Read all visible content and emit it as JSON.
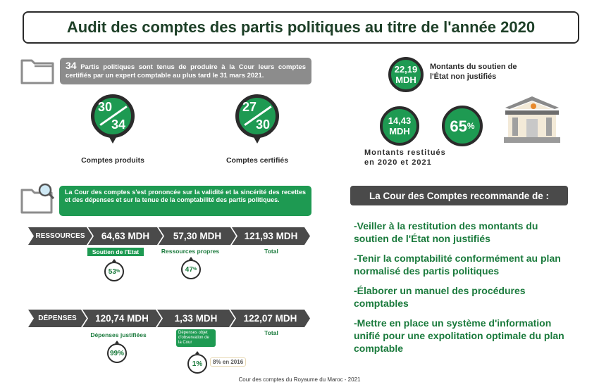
{
  "title": "Audit des comptes des partis politiques au titre de l'année 2020",
  "intro": {
    "number": "34",
    "text": " Partis politiques sont tenus de produire à la Cour leurs comptes certifiés par un expert comptable au plus tard le 31 mars 2021."
  },
  "pins": [
    {
      "num": "30",
      "den": "34",
      "label": "Comptes produits"
    },
    {
      "num": "27",
      "den": "30",
      "label": "Comptes certifiés"
    }
  ],
  "state_support": {
    "value": "22,19",
    "unit": "MDH",
    "label": "Montants du soutien de l'État non justifiés"
  },
  "restituted": {
    "value": "14,43",
    "unit": "MDH",
    "percent": "65",
    "pct_sign": "%",
    "label_line1": "Montants restitués",
    "label_line2": "en 2020 et 2021"
  },
  "opinion": "La Cour des comptes s'est prononcée sur la validité et la sincérité des recettes et des dépenses et sur la tenue de la comptabilité des partis politiques.",
  "recommendations": {
    "heading": "La Cour des Comptes recommande de :",
    "items": [
      "-Veiller à la restitution des montants du soutien de l'État non justifiés",
      "-Tenir la comptabilité conformément au plan normalisé des partis politiques",
      "-Élaborer un manuel des procédures comptables",
      "-Mettre en place un système d'information unifié pour une expolitation optimale du plan comptable"
    ]
  },
  "ressources": {
    "label": "RESSOURCES",
    "values": [
      "64,63 MDH",
      "57,30 MDH",
      "121,93 MDH"
    ],
    "captions": [
      "Soutien de l'Etat",
      "Ressources propres",
      "Total"
    ],
    "percents": [
      "53",
      "47"
    ],
    "pct_sign": "%"
  },
  "depenses": {
    "label": "DÉPENSES",
    "values": [
      "120,74 MDH",
      "1,33 MDH",
      "122,07 MDH"
    ],
    "captions": [
      "Dépenses justifiées",
      "Dépenses objet d'observation de la Cour",
      "Total"
    ],
    "percents": [
      "99%",
      "1%"
    ],
    "note": "8% en 2016"
  },
  "footer": "Cour des comptes du Royaume du Maroc - 2021",
  "colors": {
    "green": "#1e9a52",
    "dark": "#2b2b2b",
    "gray": "#8c8c8c",
    "text_green": "#1a7a3c"
  },
  "icons": [
    "folder-icon",
    "folder-search-icon",
    "court-building-icon"
  ]
}
